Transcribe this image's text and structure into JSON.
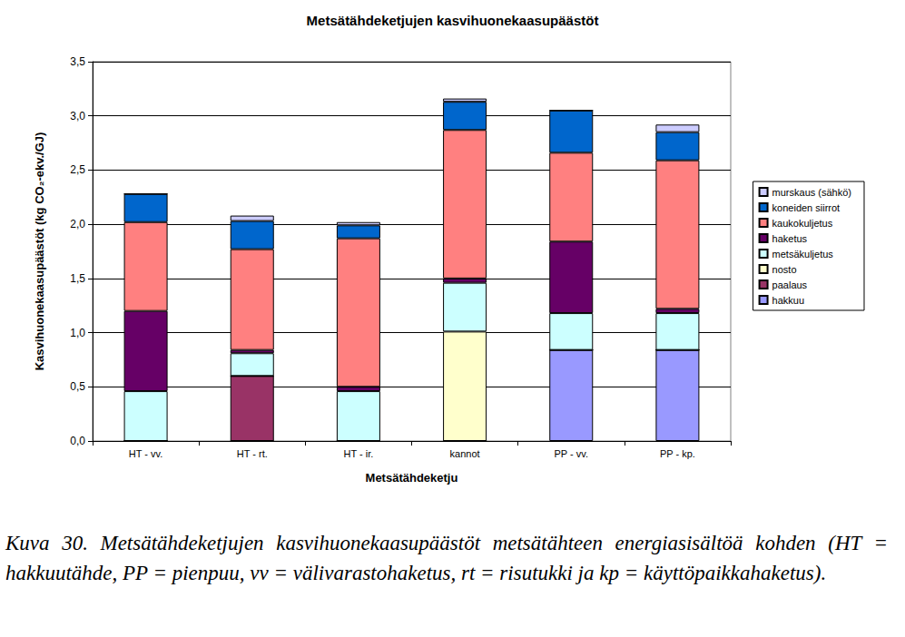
{
  "chart_data": {
    "type": "bar",
    "title": "Metsätähdeketjujen kasvihuonekaasupäästöt",
    "x_label": "Metsätähdeketju",
    "y_label": "Kasvihuonekaasupäästöt (kg CO₂-ekv./GJ)",
    "caption": "Kuva 30. Metsätähdeketjujen kasvihuonekaasupäästöt metsätähteen energiasisältöä kohden (HT = hakkuutähde, PP = pienpuu, vv = välivarastohaketus, rt = risutukki ja kp = käyttöpaikkahaketus).",
    "categories": [
      "HT - vv.",
      "HT - rt.",
      "HT - ir.",
      "kannot",
      "PP - vv.",
      "PP - kp."
    ],
    "stacked": true,
    "grid": true,
    "legend": "right",
    "ylim": [
      0,
      3.5
    ],
    "yticks": [
      {
        "value": 0,
        "label": "0,0"
      },
      {
        "value": 0.5,
        "label": "0,5"
      },
      {
        "value": 1,
        "label": "1,0"
      },
      {
        "value": 1.5,
        "label": "1,5"
      },
      {
        "value": 2,
        "label": "2,0"
      },
      {
        "value": 2.5,
        "label": "2,5"
      },
      {
        "value": 3,
        "label": "3,0"
      },
      {
        "value": 3.5,
        "label": "3,5"
      }
    ],
    "series": [
      {
        "name": "hakkuu",
        "color": "#9999ff",
        "values": [
          0,
          0,
          0,
          0,
          0.84,
          0.84
        ]
      },
      {
        "name": "paalaus",
        "color": "#993366",
        "values": [
          0,
          0.6,
          0,
          0,
          0,
          0
        ]
      },
      {
        "name": "nosto",
        "color": "#ffffcc",
        "values": [
          0,
          0,
          0,
          1.01,
          0,
          0
        ]
      },
      {
        "name": "metsäkuljetus",
        "color": "#ccffff",
        "values": [
          0.46,
          0.21,
          0.46,
          0.45,
          0.34,
          0.34
        ]
      },
      {
        "name": "haketus",
        "color": "#660066",
        "values": [
          0.74,
          0.03,
          0.04,
          0.04,
          0.66,
          0.04
        ]
      },
      {
        "name": "kaukokuljetus",
        "color": "#ff8080",
        "values": [
          0.82,
          0.93,
          1.37,
          1.37,
          0.82,
          1.37
        ]
      },
      {
        "name": "koneiden siirrot",
        "color": "#0066cc",
        "values": [
          0.26,
          0.26,
          0.12,
          0.26,
          0.39,
          0.26
        ]
      },
      {
        "name": "murskaus (sähkö)",
        "color": "#ccccff",
        "values": [
          0,
          0.05,
          0.03,
          0.03,
          0,
          0.07
        ]
      }
    ]
  }
}
